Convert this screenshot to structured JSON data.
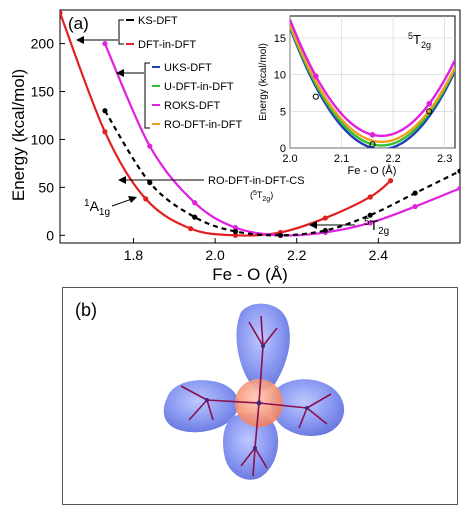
{
  "panel_a": {
    "label": "(a)",
    "ylabel": "Energy  (kcal/mol)",
    "xlabel": "Fe - O (Å)",
    "legend_group1": [
      "KS-DFT",
      "DFT-in-DFT"
    ],
    "legend_group2": [
      "UKS-DFT",
      "U-DFT-in-DFT",
      "ROKS-DFT",
      "RO-DFT-in-DFT"
    ],
    "annotation_cs": "RO-DFT-in-DFT-CS",
    "annotation_cs_state": "(5T2g)",
    "state_1a1g_main": "1",
    "state_1a1g_rest": "A1g",
    "state_5t2g_main": "5",
    "state_5t2g_rest": "T2g"
  },
  "panel_b": {
    "label": "(b)"
  },
  "colors": {
    "ks": "#000000",
    "dft_in_dft": "#e02020",
    "uks": "#1f3fbf",
    "u_dft_in_dft": "#30c030",
    "roks": "#e020e0",
    "ro_dft_in_dft": "#f0a020",
    "cs": "#000000"
  },
  "chart_data": [
    {
      "type": "line",
      "xlabel": "Fe - O (Å)",
      "ylabel": "Energy  (kcal/mol)",
      "xlim": [
        1.62,
        2.6
      ],
      "ylim": [
        -8,
        235
      ],
      "xticks": [
        1.8,
        2.0,
        2.2,
        2.4
      ],
      "yticks": [
        0,
        50,
        100,
        150,
        200
      ],
      "series": [
        {
          "name": "DFT-in-DFT",
          "color": "#e02020",
          "style": "solid",
          "x": [
            1.62,
            1.73,
            1.83,
            1.94,
            2.05,
            2.16,
            2.27,
            2.38,
            2.43
          ],
          "y": [
            232,
            108,
            38,
            7,
            0,
            3,
            18,
            40,
            57
          ]
        },
        {
          "name": "ROKS-DFT",
          "color": "#e020e0",
          "style": "solid",
          "x": [
            1.73,
            1.84,
            1.95,
            2.05,
            2.16,
            2.27,
            2.38,
            2.49,
            2.6
          ],
          "y": [
            200,
            93,
            34,
            8,
            0,
            3,
            13,
            30,
            49
          ]
        },
        {
          "name": "RO-DFT-in-DFT-CS",
          "color": "#000000",
          "style": "dashed",
          "x": [
            1.73,
            1.84,
            1.95,
            2.05,
            2.16,
            2.27,
            2.38,
            2.49,
            2.6
          ],
          "y": [
            130,
            55,
            19,
            4,
            0,
            5,
            21,
            44,
            67
          ]
        }
      ]
    },
    {
      "type": "line",
      "title": "5T2g",
      "xlabel": "Fe - O (Å)",
      "ylabel": "Energy  (kcal/mol)",
      "xlim": [
        2.0,
        2.32
      ],
      "ylim": [
        0,
        18
      ],
      "xticks": [
        2.0,
        2.1,
        2.2,
        2.3
      ],
      "yticks": [
        0,
        5,
        10,
        15
      ],
      "series": [
        {
          "name": "UKS-DFT",
          "color": "#1f3fbf",
          "x": [
            2.0,
            2.16,
            2.32
          ],
          "y": [
            16.4,
            0.0,
            10.5
          ]
        },
        {
          "name": "U-DFT-in-DFT",
          "color": "#30c030",
          "x": [
            2.0,
            2.16,
            2.32
          ],
          "y": [
            16.6,
            0.5,
            10.8
          ]
        },
        {
          "name": "RO-DFT-in-DFT",
          "color": "#f0a020",
          "x": [
            2.0,
            2.16,
            2.32
          ],
          "y": [
            16.8,
            1.0,
            11.0
          ]
        },
        {
          "name": "ROKS-DFT",
          "color": "#e020e0",
          "x": [
            2.0,
            2.16,
            2.32
          ],
          "y": [
            17.5,
            1.8,
            12.0
          ]
        },
        {
          "name": "KS-DFT",
          "color": "#000000",
          "x": [
            2.05,
            2.16,
            2.27
          ],
          "y": [
            7.0,
            0.5,
            5.0
          ]
        }
      ]
    }
  ]
}
